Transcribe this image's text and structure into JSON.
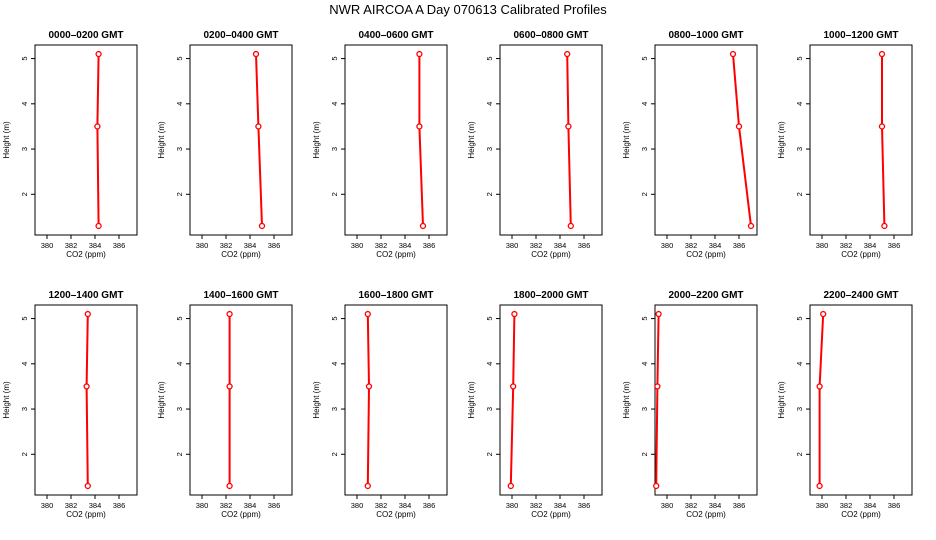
{
  "page": {
    "title": "NWR AIRCOA A  Day 070613  Calibrated Profiles"
  },
  "colors": {
    "profile": "#ff0000",
    "axis": "#000000"
  },
  "chart_data": [
    {
      "type": "line",
      "title": "0000–0200 GMT",
      "xlabel": "CO2 (ppm)",
      "ylabel": "Height (m)",
      "xlim": [
        379,
        387.5
      ],
      "ylim": [
        1.1,
        5.3
      ],
      "xticks": [
        380,
        382,
        384,
        386
      ],
      "yticks": [
        2,
        3,
        4,
        5
      ],
      "series": [
        {
          "x": [
            384.3,
            384.2,
            384.3
          ],
          "y": [
            1.3,
            3.5,
            5.1
          ]
        }
      ]
    },
    {
      "type": "line",
      "title": "0200–0400 GMT",
      "xlabel": "CO2 (ppm)",
      "ylabel": "Height (m)",
      "xlim": [
        379,
        387.5
      ],
      "ylim": [
        1.1,
        5.3
      ],
      "xticks": [
        380,
        382,
        384,
        386
      ],
      "yticks": [
        2,
        3,
        4,
        5
      ],
      "series": [
        {
          "x": [
            385.0,
            384.7,
            384.5
          ],
          "y": [
            1.3,
            3.5,
            5.1
          ]
        }
      ]
    },
    {
      "type": "line",
      "title": "0400–0600 GMT",
      "xlabel": "CO2 (ppm)",
      "ylabel": "Height (m)",
      "xlim": [
        379,
        387.5
      ],
      "ylim": [
        1.1,
        5.3
      ],
      "xticks": [
        380,
        382,
        384,
        386
      ],
      "yticks": [
        2,
        3,
        4,
        5
      ],
      "series": [
        {
          "x": [
            385.5,
            385.2,
            385.2
          ],
          "y": [
            1.3,
            3.5,
            5.1
          ]
        }
      ]
    },
    {
      "type": "line",
      "title": "0600–0800 GMT",
      "xlabel": "CO2 (ppm)",
      "ylabel": "Height (m)",
      "xlim": [
        379,
        387.5
      ],
      "ylim": [
        1.1,
        5.3
      ],
      "xticks": [
        380,
        382,
        384,
        386
      ],
      "yticks": [
        2,
        3,
        4,
        5
      ],
      "series": [
        {
          "x": [
            384.9,
            384.7,
            384.6
          ],
          "y": [
            1.3,
            3.5,
            5.1
          ]
        }
      ]
    },
    {
      "type": "line",
      "title": "0800–1000 GMT",
      "xlabel": "CO2 (ppm)",
      "ylabel": "Height (m)",
      "xlim": [
        379,
        387.5
      ],
      "ylim": [
        1.1,
        5.3
      ],
      "xticks": [
        380,
        382,
        384,
        386
      ],
      "yticks": [
        2,
        3,
        4,
        5
      ],
      "series": [
        {
          "x": [
            387.0,
            386.0,
            385.5
          ],
          "y": [
            1.3,
            3.5,
            5.1
          ]
        }
      ]
    },
    {
      "type": "line",
      "title": "1000–1200 GMT",
      "xlabel": "CO2 (ppm)",
      "ylabel": "Height (m)",
      "xlim": [
        379,
        387.5
      ],
      "ylim": [
        1.1,
        5.3
      ],
      "xticks": [
        380,
        382,
        384,
        386
      ],
      "yticks": [
        2,
        3,
        4,
        5
      ],
      "series": [
        {
          "x": [
            385.2,
            385.0,
            385.0
          ],
          "y": [
            1.3,
            3.5,
            5.1
          ]
        }
      ]
    },
    {
      "type": "line",
      "title": "1200–1400 GMT",
      "xlabel": "CO2 (ppm)",
      "ylabel": "Height (m)",
      "xlim": [
        379,
        387.5
      ],
      "ylim": [
        1.1,
        5.3
      ],
      "xticks": [
        380,
        382,
        384,
        386
      ],
      "yticks": [
        2,
        3,
        4,
        5
      ],
      "series": [
        {
          "x": [
            383.4,
            383.3,
            383.4
          ],
          "y": [
            1.3,
            3.5,
            5.1
          ]
        }
      ]
    },
    {
      "type": "line",
      "title": "1400–1600 GMT",
      "xlabel": "CO2 (ppm)",
      "ylabel": "Height (m)",
      "xlim": [
        379,
        387.5
      ],
      "ylim": [
        1.1,
        5.3
      ],
      "xticks": [
        380,
        382,
        384,
        386
      ],
      "yticks": [
        2,
        3,
        4,
        5
      ],
      "series": [
        {
          "x": [
            382.3,
            382.3,
            382.3
          ],
          "y": [
            1.3,
            3.5,
            5.1
          ]
        }
      ]
    },
    {
      "type": "line",
      "title": "1600–1800 GMT",
      "xlabel": "CO2 (ppm)",
      "ylabel": "Height (m)",
      "xlim": [
        379,
        387.5
      ],
      "ylim": [
        1.1,
        5.3
      ],
      "xticks": [
        380,
        382,
        384,
        386
      ],
      "yticks": [
        2,
        3,
        4,
        5
      ],
      "series": [
        {
          "x": [
            380.9,
            381.0,
            380.9
          ],
          "y": [
            1.3,
            3.5,
            5.1
          ]
        }
      ]
    },
    {
      "type": "line",
      "title": "1800–2000 GMT",
      "xlabel": "CO2 (ppm)",
      "ylabel": "Height (m)",
      "xlim": [
        379,
        387.5
      ],
      "ylim": [
        1.1,
        5.3
      ],
      "xticks": [
        380,
        382,
        384,
        386
      ],
      "yticks": [
        2,
        3,
        4,
        5
      ],
      "series": [
        {
          "x": [
            379.9,
            380.1,
            380.2
          ],
          "y": [
            1.3,
            3.5,
            5.1
          ]
        }
      ]
    },
    {
      "type": "line",
      "title": "2000–2200 GMT",
      "xlabel": "CO2 (ppm)",
      "ylabel": "Height (m)",
      "xlim": [
        379,
        387.5
      ],
      "ylim": [
        1.1,
        5.3
      ],
      "xticks": [
        380,
        382,
        384,
        386
      ],
      "yticks": [
        2,
        3,
        4,
        5
      ],
      "series": [
        {
          "x": [
            379.1,
            379.2,
            379.3
          ],
          "y": [
            1.3,
            3.5,
            5.1
          ]
        }
      ]
    },
    {
      "type": "line",
      "title": "2200–2400 GMT",
      "xlabel": "CO2 (ppm)",
      "ylabel": "Height (m)",
      "xlim": [
        379,
        387.5
      ],
      "ylim": [
        1.1,
        5.3
      ],
      "xticks": [
        380,
        382,
        384,
        386
      ],
      "yticks": [
        2,
        3,
        4,
        5
      ],
      "series": [
        {
          "x": [
            379.8,
            379.8,
            380.1
          ],
          "y": [
            1.3,
            3.5,
            5.1
          ]
        }
      ]
    }
  ]
}
